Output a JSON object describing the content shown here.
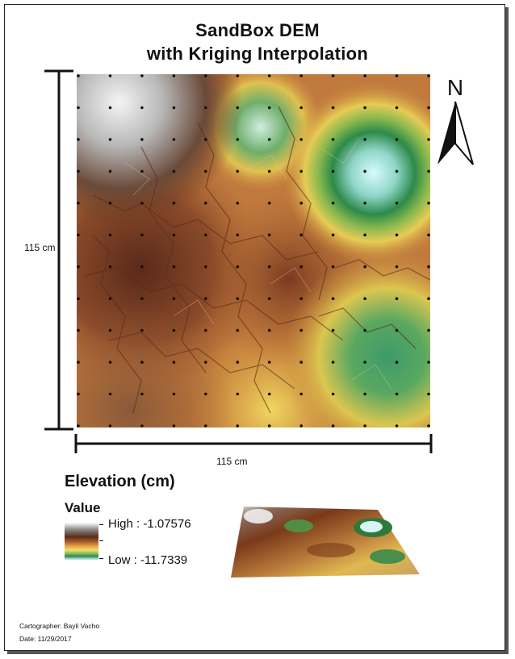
{
  "title_line1": "SandBox DEM",
  "title_line2": "with Kriging Interpolation",
  "scale": {
    "vertical_label": "115 cm",
    "horizontal_label": "115 cm"
  },
  "north_arrow": {
    "label": "N",
    "icon": "north-arrow-icon"
  },
  "legend": {
    "heading": "Elevation (cm)",
    "field": "Value",
    "high_label": "High : -1.07576",
    "low_label": "Low : -11.7339",
    "ramp_colors": [
      "#ffffff",
      "#8b8b8b",
      "#5a2a1a",
      "#a8602e",
      "#e8a64a",
      "#f2e06a",
      "#7fb85a",
      "#2f8a4a",
      "#c8f0ff"
    ]
  },
  "credits": {
    "cartographer": "Cartographer: Bayli Vacho",
    "date": "Date: 11/29/2017"
  }
}
